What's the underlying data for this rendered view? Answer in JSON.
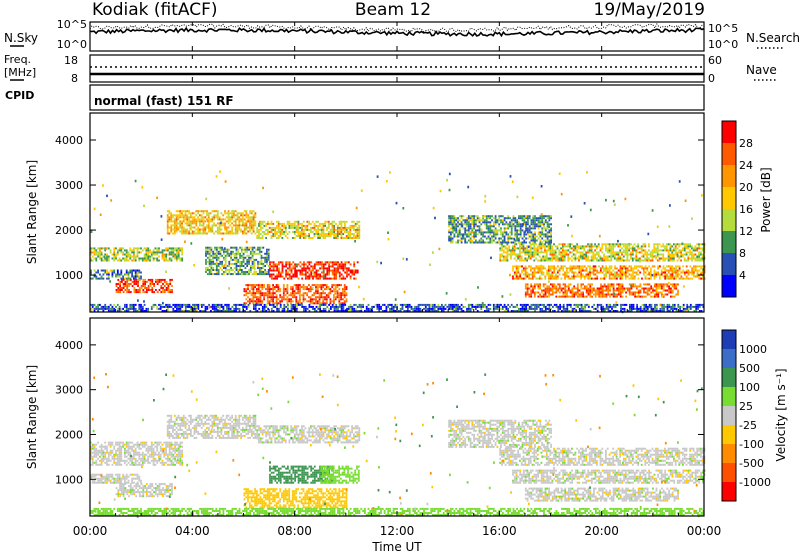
{
  "header": {
    "station": "Kodiak (fitACF)",
    "beam": "Beam 12",
    "date": "19/May/2019"
  },
  "noise_panel": {
    "left_label": "N.Sky",
    "right_label": "N.Search",
    "tick_top": "10^5",
    "tick_bottom": "10^0"
  },
  "freq_panel": {
    "left_label_1": "Freq.",
    "left_label_2": "[MHz]",
    "left_ticks": [
      "18",
      "8"
    ],
    "right_ticks": [
      "60",
      "0"
    ],
    "right_label": "Nave"
  },
  "cpid_panel": {
    "label": "CPID",
    "mode_text": "normal (fast) 151 RF"
  },
  "power_panel": {
    "ylabel": "Slant Range [km]",
    "yticks": [
      "4000",
      "3000",
      "2000",
      "1000"
    ],
    "colorbar_label": "Power [dB]",
    "colorbar_ticks": [
      "28",
      "24",
      "20",
      "16",
      "12",
      "8",
      "4"
    ],
    "colors": [
      "#ff0000",
      "#ff5a00",
      "#ff9600",
      "#ffc800",
      "#b4dc3c",
      "#3c9650",
      "#2850b4",
      "#0000ff"
    ]
  },
  "velocity_panel": {
    "ylabel": "Slant Range [km]",
    "yticks": [
      "4000",
      "3000",
      "2000",
      "1000"
    ],
    "colorbar_label": "Velocity [m s⁻¹]",
    "colorbar_ticks": [
      "1000",
      "500",
      "100",
      "25",
      "-25",
      "-100",
      "-500",
      "-1000"
    ],
    "colors": [
      "#1e3cb4",
      "#3c6ec8",
      "#3c9650",
      "#78dc32",
      "#c8c8c8",
      "#ffc800",
      "#ff8c00",
      "#ff5000",
      "#ff0000"
    ]
  },
  "xaxis": {
    "label": "Time UT",
    "ticks": [
      "00:00",
      "04:00",
      "08:00",
      "12:00",
      "16:00",
      "20:00",
      "00:00"
    ]
  },
  "chart_data": [
    {
      "type": "heatmap",
      "quantity": "Power",
      "unit": "dB",
      "x_range_hours": [
        0,
        24
      ],
      "ylim": [
        180,
        4600
      ],
      "clim": [
        0,
        32
      ],
      "echo_regions": [
        {
          "t0": 0.0,
          "t1": 3.6,
          "r0": 1300,
          "r1": 1600,
          "value": 13
        },
        {
          "t0": 0.0,
          "t1": 2.0,
          "r0": 900,
          "r1": 1100,
          "value": 8
        },
        {
          "t0": 1.0,
          "t1": 3.2,
          "r0": 600,
          "r1": 900,
          "value": 27
        },
        {
          "t0": 3.0,
          "t1": 6.5,
          "r0": 1900,
          "r1": 2400,
          "value": 18
        },
        {
          "t0": 6.5,
          "t1": 10.5,
          "r0": 1800,
          "r1": 2200,
          "value": 16
        },
        {
          "t0": 7.0,
          "t1": 10.5,
          "r0": 900,
          "r1": 1300,
          "value": 28
        },
        {
          "t0": 6.0,
          "t1": 10.0,
          "r0": 350,
          "r1": 800,
          "value": 26
        },
        {
          "t0": 4.5,
          "t1": 7.0,
          "r0": 1000,
          "r1": 1600,
          "value": 10
        },
        {
          "t0": 14.0,
          "t1": 18.0,
          "r0": 1700,
          "r1": 2300,
          "value": 9
        },
        {
          "t0": 16.0,
          "t1": 24.0,
          "r0": 1300,
          "r1": 1700,
          "value": 15
        },
        {
          "t0": 16.5,
          "t1": 24.0,
          "r0": 900,
          "r1": 1200,
          "value": 20
        },
        {
          "t0": 17.0,
          "t1": 23.0,
          "r0": 500,
          "r1": 800,
          "value": 24
        },
        {
          "t0": 0.0,
          "t1": 24.0,
          "r0": 180,
          "r1": 320,
          "value": 5
        }
      ]
    },
    {
      "type": "heatmap",
      "quantity": "Velocity",
      "unit": "m s⁻¹",
      "x_range_hours": [
        0,
        24
      ],
      "ylim": [
        180,
        4600
      ],
      "clim": [
        -1000,
        1000
      ],
      "echo_regions": [
        {
          "t0": 0.0,
          "t1": 3.6,
          "r0": 1300,
          "r1": 1800,
          "value": 0
        },
        {
          "t0": 0.0,
          "t1": 2.0,
          "r0": 900,
          "r1": 1100,
          "value": 0
        },
        {
          "t0": 1.0,
          "t1": 3.2,
          "r0": 600,
          "r1": 900,
          "value": 0
        },
        {
          "t0": 3.0,
          "t1": 6.5,
          "r0": 1900,
          "r1": 2400,
          "value": 0
        },
        {
          "t0": 6.5,
          "t1": 10.5,
          "r0": 1800,
          "r1": 2200,
          "value": 0
        },
        {
          "t0": 7.0,
          "t1": 9.5,
          "r0": 900,
          "r1": 1300,
          "value": 150
        },
        {
          "t0": 9.0,
          "t1": 10.5,
          "r0": 900,
          "r1": 1300,
          "value": 60
        },
        {
          "t0": 6.0,
          "t1": 10.0,
          "r0": 350,
          "r1": 800,
          "value": -60
        },
        {
          "t0": 14.0,
          "t1": 18.0,
          "r0": 1700,
          "r1": 2300,
          "value": 0
        },
        {
          "t0": 16.0,
          "t1": 24.0,
          "r0": 1300,
          "r1": 1700,
          "value": 0
        },
        {
          "t0": 16.5,
          "t1": 24.0,
          "r0": 900,
          "r1": 1200,
          "value": 0
        },
        {
          "t0": 17.0,
          "t1": 23.0,
          "r0": 500,
          "r1": 800,
          "value": 0
        },
        {
          "t0": 0.0,
          "t1": 24.0,
          "r0": 180,
          "r1": 320,
          "value": 60
        }
      ]
    }
  ]
}
